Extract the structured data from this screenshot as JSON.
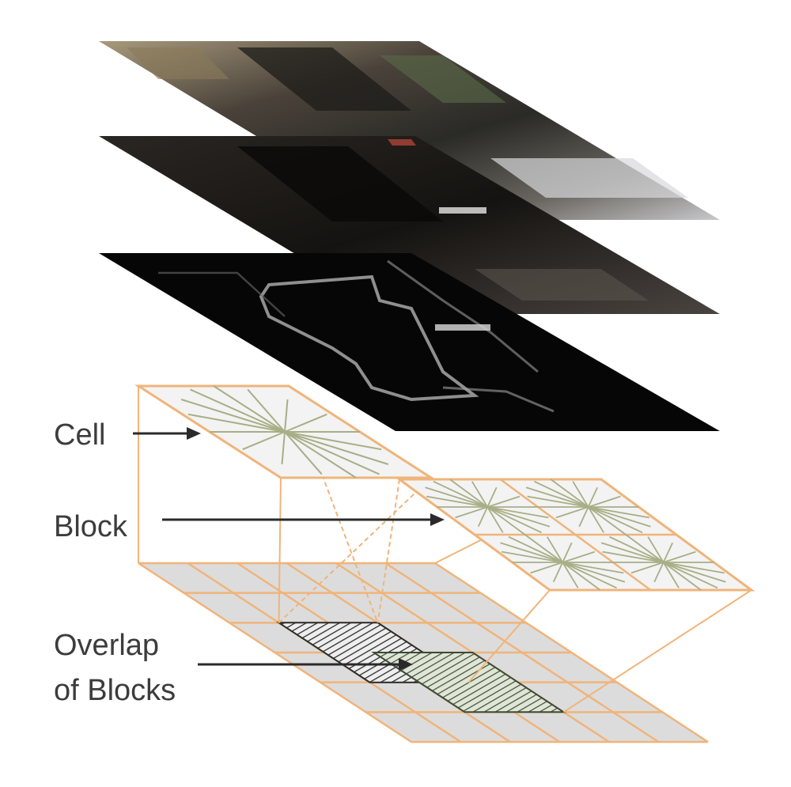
{
  "labels": {
    "cell": "Cell",
    "block": "Block",
    "overlap_line1": "Overlap",
    "overlap_line2": "of Blocks"
  },
  "colors": {
    "grid_line": "#f0b47a",
    "grid_fill": "#dcdcdc",
    "cell_fill": "#e6e6e6",
    "gradient_line": "#a8ae86",
    "arrow": "#2a2a2a",
    "overlap_dark": "#3a3a3a",
    "overlap_green": "#5a7a4a"
  },
  "layers": [
    {
      "name": "rgb-image-layer"
    },
    {
      "name": "dark-image-layer"
    },
    {
      "name": "edge-gradient-layer"
    }
  ]
}
